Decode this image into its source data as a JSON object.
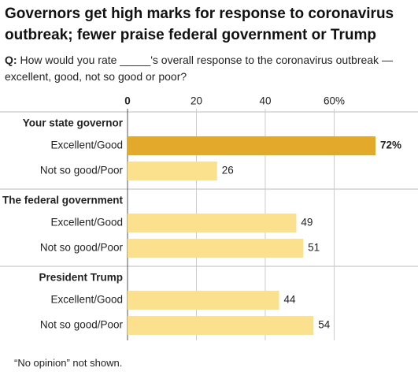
{
  "chart_data": {
    "type": "bar",
    "orientation": "horizontal",
    "title": "Governors get high marks for response to coronavirus outbreak; fewer praise federal government or Trump",
    "question_label": "Q:",
    "question": "How would you rate _____'s overall response to the coronavirus outbreak — excellent, good, not so good or poor?",
    "note": "“No opinion” not shown.",
    "xlim": [
      0,
      80
    ],
    "xticks": [
      0,
      20,
      40,
      {
        "value": 60,
        "label": "60%"
      }
    ],
    "grid": true,
    "groups": [
      {
        "name": "Your state governor",
        "categories": [
          "Excellent/Good",
          "Not so good/Poor"
        ],
        "values": [
          72,
          26
        ],
        "value_labels": [
          "72%",
          "26"
        ],
        "colors": [
          "#e3a92a",
          "#fbe08e"
        ]
      },
      {
        "name": "The federal government",
        "categories": [
          "Excellent/Good",
          "Not so good/Poor"
        ],
        "values": [
          49,
          51
        ],
        "colors": [
          "#fbe08e",
          "#fbe08e"
        ]
      },
      {
        "name": "President Trump",
        "categories": [
          "Excellent/Good",
          "Not so good/Poor"
        ],
        "values": [
          44,
          54
        ],
        "colors": [
          "#fbe08e",
          "#fbe08e"
        ]
      }
    ]
  }
}
